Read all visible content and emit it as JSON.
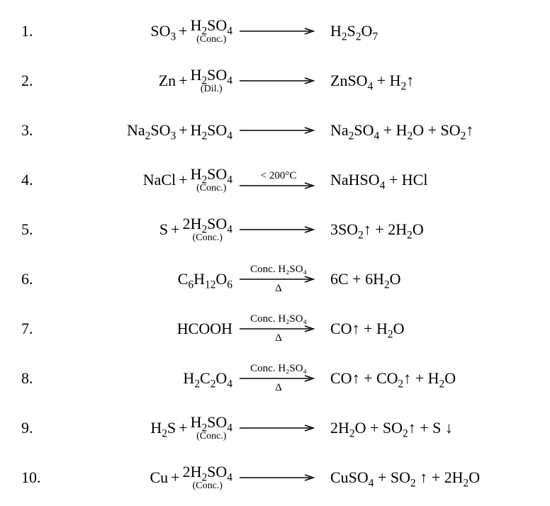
{
  "text_color": "#000000",
  "background_color": "#ffffff",
  "font_family": "Times New Roman",
  "base_fontsize": 22,
  "annotation_fontsize": 14,
  "arrow_label_fontsize": 15,
  "equations": [
    {
      "num": "1.",
      "lhs": [
        {
          "formula_html": "SO<sub>3</sub>",
          "annot": ""
        },
        {
          "plus": "+"
        },
        {
          "formula_html": "H<sub>2</sub>SO<sub>4</sub>",
          "annot": "(Conc.)"
        }
      ],
      "arrow_above": "",
      "arrow_below": "",
      "rhs_html": "H<sub>2</sub>S<sub>2</sub>O<sub>7</sub>"
    },
    {
      "num": "2.",
      "lhs": [
        {
          "formula_html": "Zn",
          "annot": ""
        },
        {
          "plus": "+"
        },
        {
          "formula_html": "H<sub>2</sub>SO<sub>4</sub>",
          "annot": "(Dil.)"
        }
      ],
      "arrow_above": "",
      "arrow_below": "",
      "rhs_html": "ZnSO<sub>4</sub> + H<sub>2</sub><span class='gas'>↑</span>"
    },
    {
      "num": "3.",
      "lhs": [
        {
          "formula_html": "Na<sub>2</sub>SO<sub>3</sub>",
          "annot": ""
        },
        {
          "plus": "+"
        },
        {
          "formula_html": "H<sub>2</sub>SO<sub>4</sub>",
          "annot": ""
        }
      ],
      "arrow_above": "",
      "arrow_below": "",
      "rhs_html": "Na<sub>2</sub>SO<sub>4</sub> + H<sub>2</sub>O + SO<sub>2</sub><span class='gas'>↑</span>"
    },
    {
      "num": "4.",
      "lhs": [
        {
          "formula_html": "NaCl",
          "annot": ""
        },
        {
          "plus": "+"
        },
        {
          "formula_html": "H<sub>2</sub>SO<sub>4</sub>",
          "annot": "(Conc.)"
        }
      ],
      "arrow_above": "< 200°C",
      "arrow_below": "",
      "rhs_html": "NaHSO<sub>4</sub> + HCl"
    },
    {
      "num": "5.",
      "lhs": [
        {
          "formula_html": "S",
          "annot": ""
        },
        {
          "plus": "+"
        },
        {
          "formula_html": "2H<sub>2</sub>SO<sub>4</sub>",
          "annot": "(Conc.)"
        }
      ],
      "arrow_above": "",
      "arrow_below": "",
      "rhs_html": "3SO<sub>2</sub><span class='gas'>↑</span> + 2H<sub>2</sub>O"
    },
    {
      "num": "6.",
      "lhs": [
        {
          "formula_html": "C<sub>6</sub>H<sub>12</sub>O<sub>6</sub>",
          "annot": ""
        }
      ],
      "arrow_above": "Conc. H₂SO₄",
      "arrow_below": "Δ",
      "rhs_html": "6C + 6H<sub>2</sub>O"
    },
    {
      "num": "7.",
      "lhs": [
        {
          "formula_html": "HCOOH",
          "annot": ""
        }
      ],
      "arrow_above": "Conc. H₂SO₄",
      "arrow_below": "Δ",
      "rhs_html": "CO<span class='gas'>↑</span> + H<sub>2</sub>O"
    },
    {
      "num": "8.",
      "lhs": [
        {
          "formula_html": "H<sub>2</sub>C<sub>2</sub>O<sub>4</sub>",
          "annot": ""
        }
      ],
      "arrow_above": "Conc. H₂SO₄",
      "arrow_below": "Δ",
      "rhs_html": "CO<span class='gas'>↑</span> + CO<sub>2</sub><span class='gas'>↑</span> + H<sub>2</sub>O"
    },
    {
      "num": "9.",
      "lhs": [
        {
          "formula_html": "H<sub>2</sub>S",
          "annot": ""
        },
        {
          "plus": "+"
        },
        {
          "formula_html": "H<sub>2</sub>SO<sub>4</sub>",
          "annot": "(Conc.)"
        }
      ],
      "arrow_above": "",
      "arrow_below": "",
      "rhs_html": "2H<sub>2</sub>O + SO<sub>2</sub><span class='gas'>↑</span> + S <span class='gas'>↓</span>"
    },
    {
      "num": "10.",
      "lhs": [
        {
          "formula_html": "Cu",
          "annot": ""
        },
        {
          "plus": "+"
        },
        {
          "formula_html": "2H<sub>2</sub>SO<sub>4</sub>",
          "annot": "(Conc.)"
        }
      ],
      "arrow_above": "",
      "arrow_below": "",
      "rhs_html": "CuSO<sub>4</sub> + SO<sub>2</sub> <span class='gas'>↑</span> + 2H<sub>2</sub>O"
    }
  ]
}
